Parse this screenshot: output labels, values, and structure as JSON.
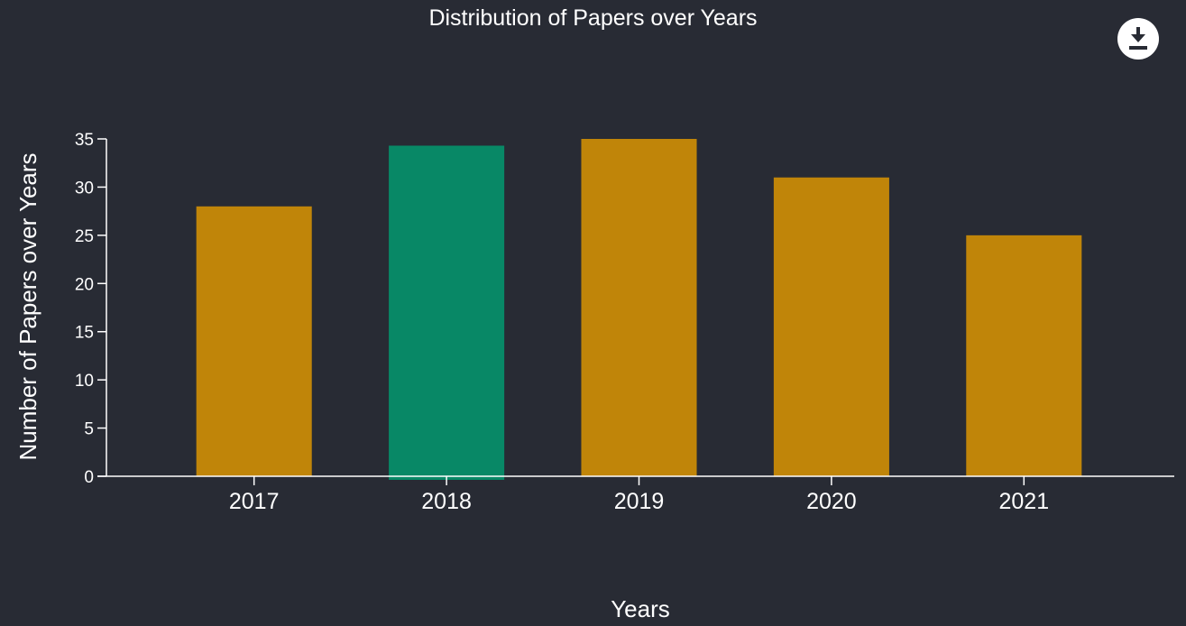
{
  "title": "Distribution of Papers over Years",
  "download_icon": "download-icon",
  "chart_data": {
    "type": "bar",
    "title": "Distribution of Papers over Years",
    "xlabel": "Years",
    "ylabel": "Number of Papers over Years",
    "categories": [
      "2017",
      "2018",
      "2019",
      "2020",
      "2021"
    ],
    "values": [
      28,
      34.3,
      35,
      31,
      25
    ],
    "highlighted": "2018",
    "ylim": [
      0,
      35
    ],
    "yticks": [
      0,
      5,
      10,
      15,
      20,
      25,
      30,
      35
    ],
    "grid": false,
    "colors": {
      "bar": "#c08509",
      "highlight": "#088866",
      "axis": "#ffffff",
      "background": "#282b34"
    }
  }
}
